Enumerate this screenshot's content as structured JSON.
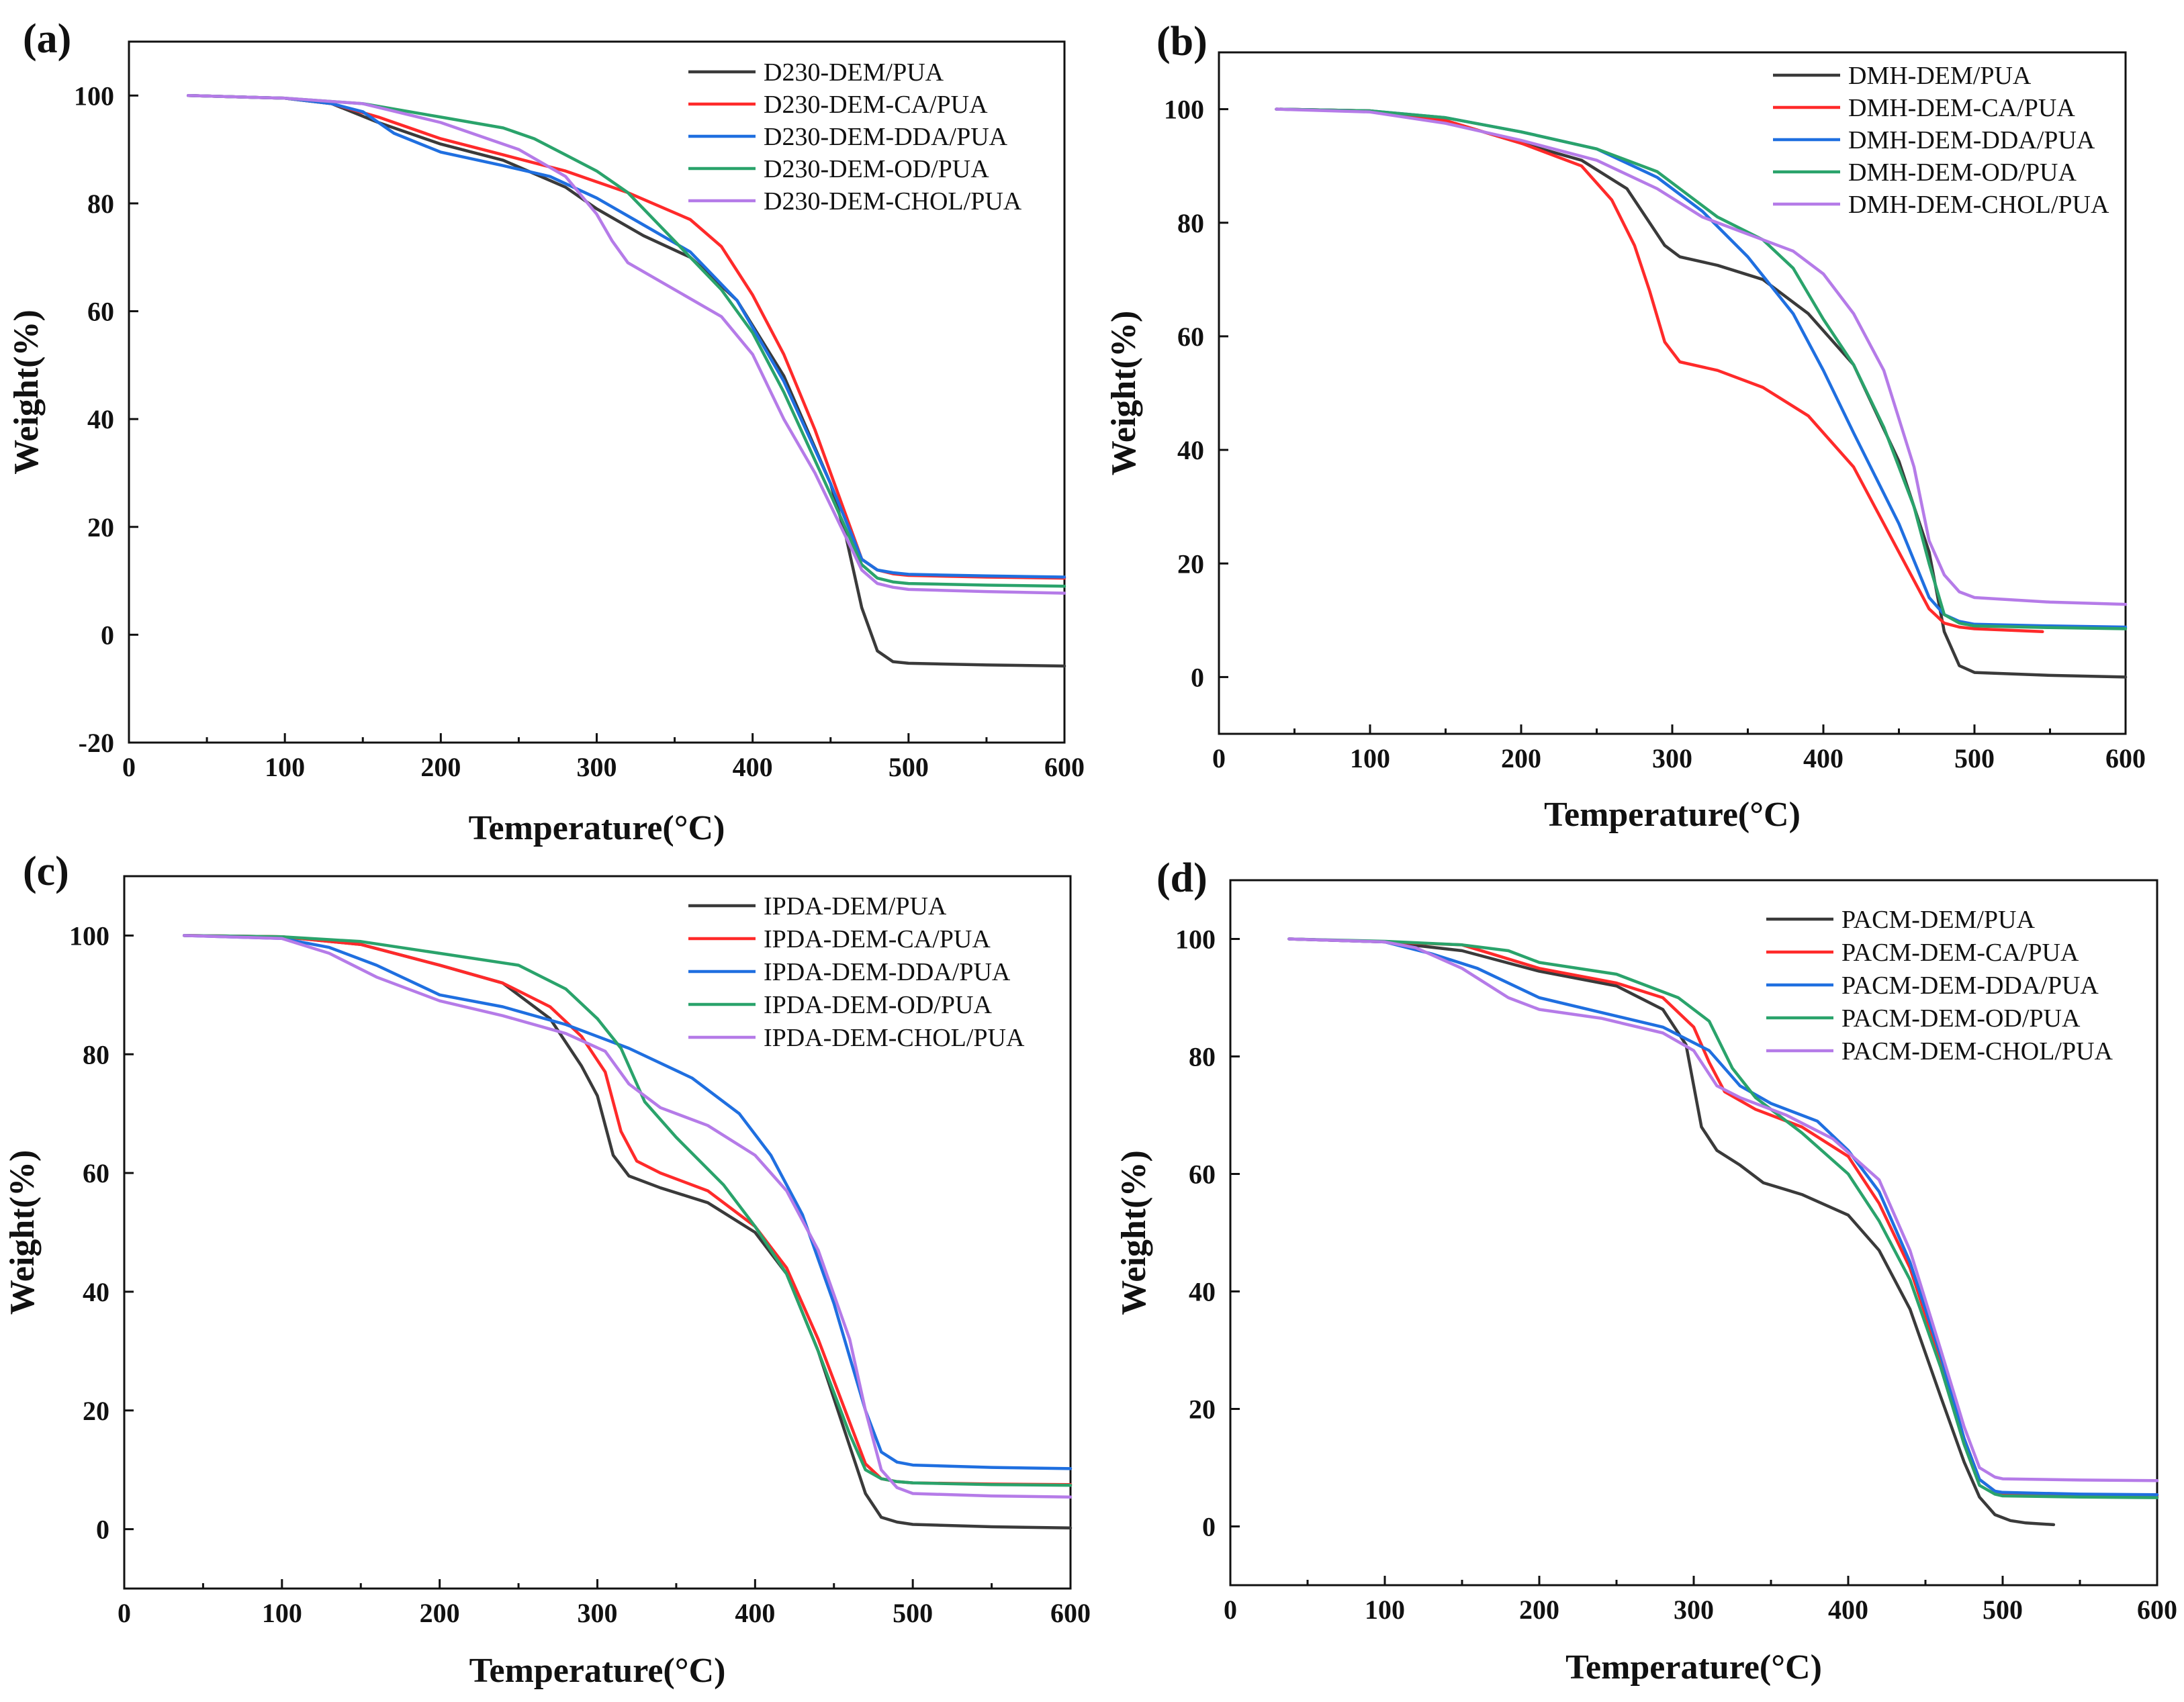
{
  "figure": {
    "panels": 4
  },
  "chart_data": [
    {
      "panel": "(a)",
      "type": "line",
      "xlabel": "Temperature(°C)",
      "ylabel": "Weight(%)",
      "xlim": [
        0,
        600
      ],
      "ylim": [
        -20,
        110
      ],
      "xticks": [
        0,
        100,
        200,
        300,
        400,
        500,
        600
      ],
      "yticks": [
        -20,
        0,
        20,
        40,
        60,
        80,
        100
      ],
      "series": [
        {
          "name": "D230-DEM/PUA",
          "color": "#3a3a3a",
          "x": [
            38,
            100,
            130,
            160,
            200,
            240,
            280,
            300,
            330,
            360,
            390,
            420,
            450,
            460,
            470,
            480,
            490,
            500,
            550,
            600
          ],
          "y": [
            100,
            99.5,
            98.5,
            95,
            91,
            88,
            83,
            79,
            74,
            70,
            62,
            48,
            28,
            18,
            5,
            -3,
            -5,
            -5.3,
            -5.6,
            -5.8
          ]
        },
        {
          "name": "D230-DEM-CA/PUA",
          "color": "#ff2a2a",
          "x": [
            38,
            100,
            130,
            160,
            200,
            240,
            280,
            320,
            360,
            380,
            400,
            420,
            440,
            460,
            470,
            480,
            490,
            500,
            550,
            600
          ],
          "y": [
            100,
            99.5,
            98.5,
            96,
            92,
            89,
            86,
            82,
            77,
            72,
            63,
            52,
            38,
            22,
            14,
            12,
            11.3,
            11,
            10.7,
            10.5
          ]
        },
        {
          "name": "D230-DEM-DDA/PUA",
          "color": "#1f6fe0",
          "x": [
            38,
            100,
            130,
            150,
            170,
            200,
            240,
            270,
            300,
            330,
            360,
            390,
            420,
            450,
            470,
            480,
            490,
            500,
            550,
            600
          ],
          "y": [
            100,
            99.5,
            98.5,
            97,
            93,
            89.5,
            87,
            85,
            81,
            76,
            71,
            62,
            47,
            28,
            14,
            12,
            11.5,
            11.2,
            10.9,
            10.7
          ]
        },
        {
          "name": "D230-DEM-OD/PUA",
          "color": "#2aa36b",
          "x": [
            38,
            100,
            150,
            200,
            240,
            260,
            280,
            300,
            320,
            350,
            380,
            400,
            420,
            450,
            470,
            480,
            490,
            500,
            550,
            600
          ],
          "y": [
            100,
            99.5,
            98.5,
            96,
            94,
            92,
            89,
            86,
            82,
            73,
            64,
            56,
            45,
            26,
            13,
            10.5,
            9.8,
            9.5,
            9.2,
            9
          ]
        },
        {
          "name": "D230-DEM-CHOL/PUA",
          "color": "#b57be8",
          "x": [
            38,
            100,
            150,
            200,
            250,
            280,
            300,
            310,
            320,
            350,
            380,
            400,
            420,
            440,
            460,
            470,
            480,
            490,
            500,
            550,
            600
          ],
          "y": [
            100,
            99.5,
            98.5,
            95,
            90,
            85,
            78,
            73,
            69,
            64,
            59,
            52,
            40,
            30,
            18,
            12,
            9.5,
            8.8,
            8.4,
            8,
            7.7
          ]
        }
      ]
    },
    {
      "panel": "(b)",
      "type": "line",
      "xlabel": "Temperature(°C)",
      "ylabel": "Weight(%)",
      "xlim": [
        0,
        600
      ],
      "ylim": [
        -10,
        110
      ],
      "xticks": [
        0,
        100,
        200,
        300,
        400,
        500,
        600
      ],
      "yticks": [
        0,
        20,
        40,
        60,
        80,
        100
      ],
      "series": [
        {
          "name": "DMH-DEM/PUA",
          "color": "#3a3a3a",
          "x": [
            38,
            100,
            150,
            200,
            240,
            270,
            285,
            295,
            305,
            330,
            360,
            390,
            420,
            450,
            470,
            480,
            490,
            500,
            550,
            600
          ],
          "y": [
            100,
            99.7,
            98,
            94,
            91,
            86,
            80,
            76,
            74,
            72.5,
            70,
            64,
            55,
            38,
            22,
            8,
            2,
            0.8,
            0.3,
            0
          ]
        },
        {
          "name": "DMH-DEM-CA/PUA",
          "color": "#ff2a2a",
          "x": [
            38,
            100,
            150,
            200,
            240,
            260,
            275,
            285,
            295,
            305,
            330,
            360,
            390,
            420,
            450,
            470,
            480,
            490,
            500,
            545
          ],
          "y": [
            100,
            99.7,
            98,
            94,
            90,
            84,
            76,
            68,
            59,
            55.5,
            54,
            51,
            46,
            37,
            22,
            12,
            9.5,
            8.8,
            8.5,
            8
          ]
        },
        {
          "name": "DMH-DEM-DDA/PUA",
          "color": "#1f6fe0",
          "x": [
            38,
            100,
            150,
            200,
            250,
            290,
            320,
            350,
            380,
            400,
            420,
            450,
            470,
            480,
            490,
            500,
            550,
            600
          ],
          "y": [
            100,
            99.7,
            98.5,
            96,
            93,
            88,
            82,
            74,
            64,
            54,
            43,
            27,
            14,
            11,
            9.8,
            9.3,
            9,
            8.8
          ]
        },
        {
          "name": "DMH-DEM-OD/PUA",
          "color": "#2aa36b",
          "x": [
            38,
            100,
            150,
            200,
            250,
            290,
            310,
            330,
            360,
            380,
            400,
            420,
            440,
            460,
            470,
            480,
            490,
            500,
            550,
            600
          ],
          "y": [
            100,
            99.7,
            98.5,
            96,
            93,
            89,
            85,
            81,
            77,
            72,
            63,
            55,
            44,
            30,
            20,
            11,
            9.5,
            9,
            8.7,
            8.5
          ]
        },
        {
          "name": "DMH-DEM-CHOL/PUA",
          "color": "#b57be8",
          "x": [
            38,
            100,
            150,
            200,
            250,
            290,
            320,
            350,
            380,
            400,
            420,
            440,
            460,
            470,
            480,
            490,
            500,
            550,
            600
          ],
          "y": [
            100,
            99.5,
            97.5,
            94.5,
            91,
            86,
            81,
            78,
            75,
            71,
            64,
            54,
            37,
            24,
            18,
            15,
            14,
            13.2,
            12.8
          ]
        }
      ]
    },
    {
      "panel": "(c)",
      "type": "line",
      "xlabel": "Temperature(°C)",
      "ylabel": "Weight(%)",
      "xlim": [
        0,
        600
      ],
      "ylim": [
        -10,
        110
      ],
      "xticks": [
        0,
        100,
        200,
        300,
        400,
        500,
        600
      ],
      "yticks": [
        0,
        20,
        40,
        60,
        80,
        100
      ],
      "series": [
        {
          "name": "IPDA-DEM/PUA",
          "color": "#3a3a3a",
          "x": [
            38,
            100,
            150,
            200,
            240,
            270,
            290,
            300,
            310,
            320,
            340,
            370,
            400,
            420,
            440,
            460,
            470,
            480,
            490,
            500,
            550,
            600
          ],
          "y": [
            100,
            99.8,
            98.5,
            95,
            92,
            86,
            78,
            73,
            63,
            59.5,
            57.5,
            55,
            50,
            43,
            30,
            14,
            6,
            2,
            1.2,
            0.8,
            0.4,
            0.2
          ]
        },
        {
          "name": "IPDA-DEM-CA/PUA",
          "color": "#ff2a2a",
          "x": [
            38,
            100,
            150,
            200,
            240,
            270,
            290,
            305,
            315,
            325,
            340,
            370,
            400,
            420,
            440,
            460,
            470,
            480,
            490,
            500,
            550,
            600
          ],
          "y": [
            100,
            99.8,
            98.5,
            95,
            92,
            88,
            83,
            77,
            67,
            62,
            60,
            57,
            51,
            44,
            32,
            18,
            11,
            8.5,
            8,
            7.8,
            7.6,
            7.5
          ]
        },
        {
          "name": "IPDA-DEM-DDA/PUA",
          "color": "#1f6fe0",
          "x": [
            38,
            100,
            130,
            160,
            200,
            240,
            280,
            320,
            360,
            390,
            410,
            430,
            450,
            470,
            480,
            490,
            500,
            550,
            600
          ],
          "y": [
            100,
            99.5,
            98,
            95,
            90,
            88,
            85,
            81,
            76,
            70,
            63,
            53,
            38,
            20,
            13,
            11.3,
            10.8,
            10.4,
            10.2
          ]
        },
        {
          "name": "IPDA-DEM-OD/PUA",
          "color": "#2aa36b",
          "x": [
            38,
            100,
            150,
            200,
            250,
            280,
            300,
            315,
            330,
            350,
            380,
            400,
            420,
            440,
            460,
            470,
            480,
            490,
            500,
            550,
            600
          ],
          "y": [
            100,
            99.8,
            99,
            97,
            95,
            91,
            86,
            81,
            72,
            66,
            58,
            51,
            43,
            30,
            16,
            10,
            8.5,
            8,
            7.8,
            7.5,
            7.4
          ]
        },
        {
          "name": "IPDA-DEM-CHOL/PUA",
          "color": "#b57be8",
          "x": [
            38,
            100,
            130,
            160,
            200,
            240,
            280,
            305,
            320,
            340,
            370,
            400,
            420,
            440,
            460,
            470,
            480,
            490,
            500,
            550,
            600
          ],
          "y": [
            100,
            99.5,
            97,
            93,
            89,
            86.5,
            83.5,
            80.5,
            75,
            71,
            68,
            63,
            57,
            47,
            32,
            20,
            10,
            7,
            6,
            5.6,
            5.4
          ]
        }
      ]
    },
    {
      "panel": "(d)",
      "type": "line",
      "xlabel": "Temperature(°C)",
      "ylabel": "Weight(%)",
      "xlim": [
        0,
        600
      ],
      "ylim": [
        -10,
        110
      ],
      "xticks": [
        0,
        100,
        200,
        300,
        400,
        500,
        600
      ],
      "yticks": [
        0,
        20,
        40,
        60,
        80,
        100
      ],
      "series": [
        {
          "name": "PACM-DEM/PUA",
          "color": "#3a3a3a",
          "x": [
            38,
            100,
            150,
            200,
            250,
            280,
            295,
            300,
            305,
            315,
            330,
            345,
            370,
            400,
            420,
            440,
            460,
            475,
            485,
            495,
            505,
            515,
            533
          ],
          "y": [
            100,
            99.5,
            98,
            94.5,
            92,
            88,
            82,
            75,
            68,
            64,
            61.5,
            58.5,
            56.5,
            53,
            47,
            37,
            22,
            11,
            5,
            2,
            1,
            0.6,
            0.3
          ]
        },
        {
          "name": "PACM-DEM-CA/PUA",
          "color": "#ff2a2a",
          "x": [
            38,
            100,
            150,
            200,
            250,
            280,
            300,
            310,
            320,
            340,
            370,
            400,
            420,
            440,
            460,
            475,
            485,
            495,
            500,
            550,
            600
          ],
          "y": [
            100,
            99.5,
            99,
            95,
            92.5,
            90,
            85,
            79,
            74,
            71,
            68,
            63,
            55,
            44,
            28,
            15,
            8,
            6,
            5.6,
            5.3,
            5.2
          ]
        },
        {
          "name": "PACM-DEM-DDA/PUA",
          "color": "#1f6fe0",
          "x": [
            38,
            100,
            130,
            160,
            200,
            240,
            280,
            310,
            330,
            350,
            380,
            400,
            420,
            440,
            460,
            475,
            485,
            495,
            500,
            550,
            600
          ],
          "y": [
            100,
            99.5,
            97.5,
            95,
            90,
            87.5,
            85,
            81,
            75,
            72,
            69,
            64,
            57,
            45,
            29,
            15,
            8,
            6,
            5.8,
            5.5,
            5.4
          ]
        },
        {
          "name": "PACM-DEM-OD/PUA",
          "color": "#2aa36b",
          "x": [
            38,
            100,
            150,
            180,
            200,
            250,
            290,
            310,
            325,
            340,
            370,
            400,
            420,
            440,
            460,
            475,
            485,
            495,
            500,
            550,
            600
          ],
          "y": [
            100,
            99.6,
            99,
            98,
            96,
            94,
            90,
            86,
            78,
            73,
            67,
            60,
            52,
            42,
            27,
            14,
            7,
            5.5,
            5.2,
            5,
            4.9
          ]
        },
        {
          "name": "PACM-DEM-CHOL/PUA",
          "color": "#b57be8",
          "x": [
            38,
            100,
            120,
            150,
            180,
            200,
            240,
            280,
            300,
            315,
            330,
            360,
            390,
            420,
            440,
            460,
            475,
            485,
            495,
            500,
            550,
            600
          ],
          "y": [
            100,
            99.5,
            98.5,
            95,
            90,
            88,
            86.5,
            84,
            81,
            75,
            73,
            70,
            66,
            59,
            47,
            30,
            17,
            10,
            8.4,
            8.1,
            7.9,
            7.8
          ]
        }
      ]
    }
  ]
}
